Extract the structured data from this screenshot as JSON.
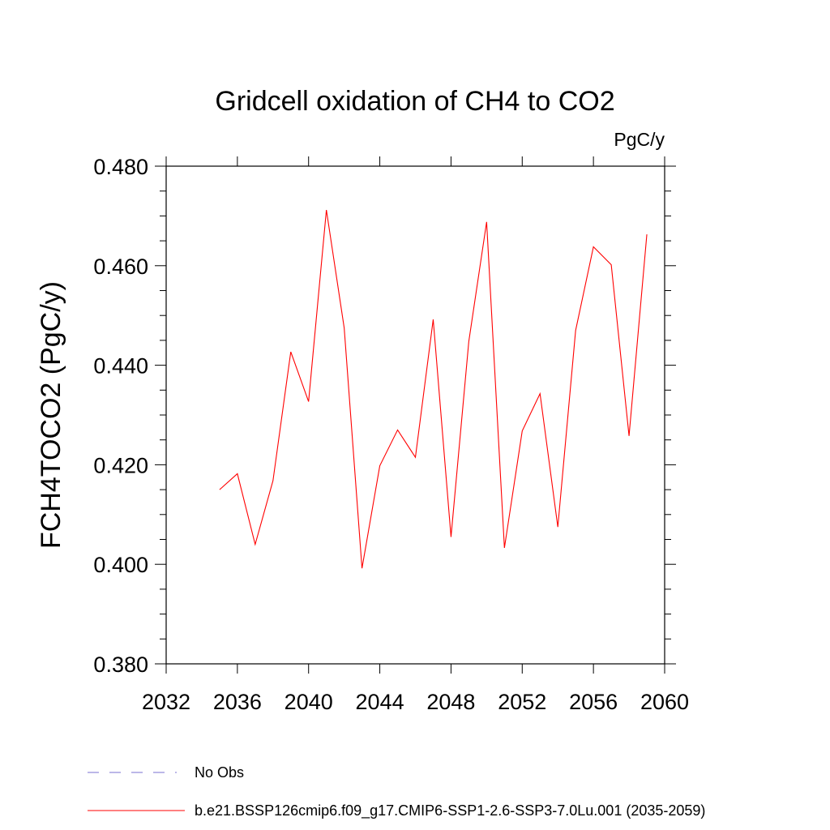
{
  "chart_data": {
    "type": "line",
    "title": "Gridcell oxidation of CH4 to CO2",
    "units_label": "PgC/y",
    "xlabel": "",
    "ylabel": "FCH4TOCO2  (PgC/y)",
    "xlim": [
      2032,
      2060
    ],
    "ylim": [
      0.38,
      0.48
    ],
    "x_ticks": [
      "2032",
      "2036",
      "2040",
      "2044",
      "2048",
      "2052",
      "2056",
      "2060"
    ],
    "y_ticks": [
      "0.380",
      "0.400",
      "0.420",
      "0.440",
      "0.460",
      "0.480"
    ],
    "series": [
      {
        "name": "b.e21.BSSP126cmip6.f09_g17.CMIP6-SSP1-2.6-SSP3-7.0Lu.001 (2035-2059)",
        "color": "#ff0000",
        "x": [
          2035,
          2036,
          2037,
          2038,
          2039,
          2040,
          2041,
          2042,
          2043,
          2044,
          2045,
          2046,
          2047,
          2048,
          2049,
          2050,
          2051,
          2052,
          2053,
          2054,
          2055,
          2056,
          2057,
          2058,
          2059
        ],
        "values": [
          0.415,
          0.4182,
          0.404,
          0.4168,
          0.4427,
          0.4327,
          0.4712,
          0.4475,
          0.3992,
          0.4198,
          0.427,
          0.4215,
          0.4492,
          0.4055,
          0.4448,
          0.4688,
          0.4033,
          0.4268,
          0.4343,
          0.4075,
          0.447,
          0.4638,
          0.4602,
          0.4258,
          0.4663
        ]
      }
    ],
    "legend": [
      {
        "label": "No Obs",
        "color": "#7a6fd0",
        "style": "dashed"
      },
      {
        "label": "b.e21.BSSP126cmip6.f09_g17.CMIP6-SSP1-2.6-SSP3-7.0Lu.001 (2035-2059)",
        "color": "#ff0000",
        "style": "solid"
      }
    ]
  }
}
